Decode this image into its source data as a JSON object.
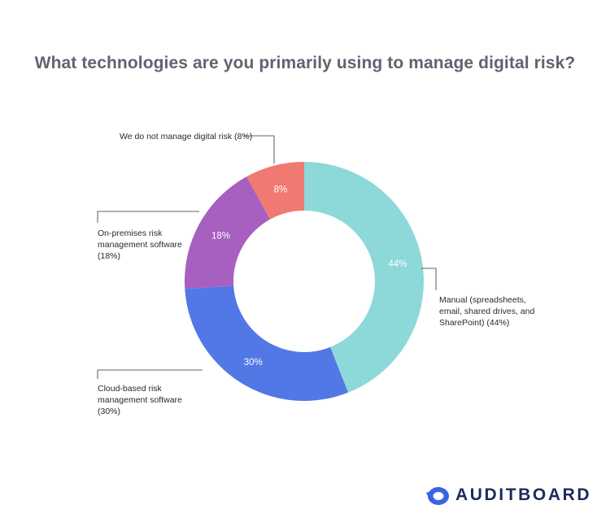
{
  "chart_data": {
    "type": "pie",
    "title": "What technologies are you primarily using to manage digital risk?",
    "slices": [
      {
        "name": "Manual (spreadsheets, email, shared drives, and SharePoint)",
        "value": 44,
        "label": "44%",
        "color": "#8dd8d9",
        "callout_lines": [
          "Manual (spreadsheets,",
          "email, shared drives, and",
          "SharePoint) (44%)"
        ]
      },
      {
        "name": "Cloud-based risk management software",
        "value": 30,
        "label": "30%",
        "color": "#5278e6",
        "callout_lines": [
          "Cloud-based risk",
          "management software",
          "(30%)"
        ]
      },
      {
        "name": "On-premises risk management software",
        "value": 18,
        "label": "18%",
        "color": "#a75fc0",
        "callout_lines": [
          "On-premises risk",
          "management software",
          "(18%)"
        ]
      },
      {
        "name": "We do not manage digital risk",
        "value": 8,
        "label": "8%",
        "color": "#f07a71",
        "callout_lines": [
          "We do not manage digital risk (8%)"
        ]
      }
    ]
  },
  "brand": {
    "name": "AUDITBOARD",
    "logo_color": "#3a63e8"
  }
}
